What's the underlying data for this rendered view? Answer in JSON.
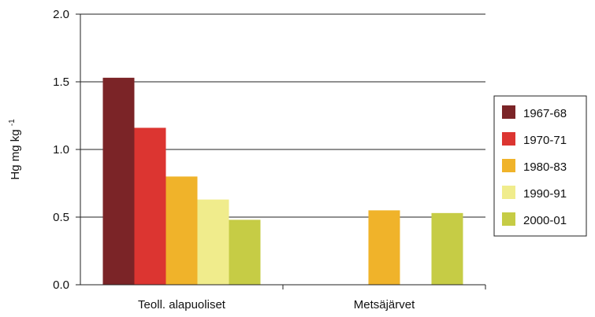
{
  "chart_data": {
    "type": "bar",
    "categories": [
      "Teoll. alapuoliset",
      "Metsäjärvet"
    ],
    "series": [
      {
        "name": "1967-68",
        "color": "#7b2427",
        "values": [
          1.53,
          null
        ]
      },
      {
        "name": "1970-71",
        "color": "#dc3531",
        "values": [
          1.16,
          null
        ]
      },
      {
        "name": "1980-83",
        "color": "#f0b32a",
        "values": [
          0.8,
          0.55
        ]
      },
      {
        "name": "1990-91",
        "color": "#f0ec8c",
        "values": [
          0.63,
          null
        ]
      },
      {
        "name": "2000-01",
        "color": "#c6cc45",
        "values": [
          0.48,
          0.53
        ]
      }
    ],
    "ylabel": "Hg mg kg",
    "ylabel_superscript": "-1",
    "ylim": [
      0,
      2.0
    ],
    "yticks": [
      "0.0",
      "0.5",
      "1.0",
      "1.5",
      "2.0"
    ],
    "grid": true,
    "legend": "right"
  }
}
